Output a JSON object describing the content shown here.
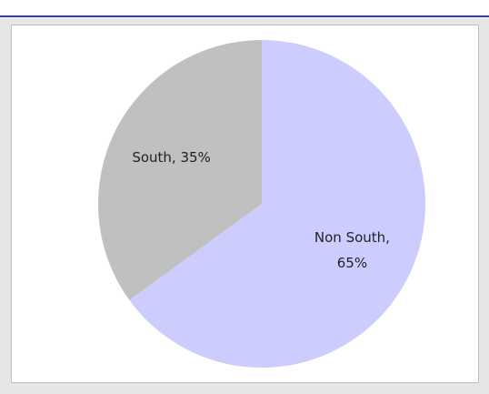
{
  "chart_data": {
    "type": "pie",
    "categories": [
      "Non South",
      "South"
    ],
    "values": [
      65,
      35
    ],
    "value_labels": [
      "Non South, 65%",
      "South, 35%"
    ],
    "colors": [
      "#ccccff",
      "#c0c0c0"
    ]
  }
}
